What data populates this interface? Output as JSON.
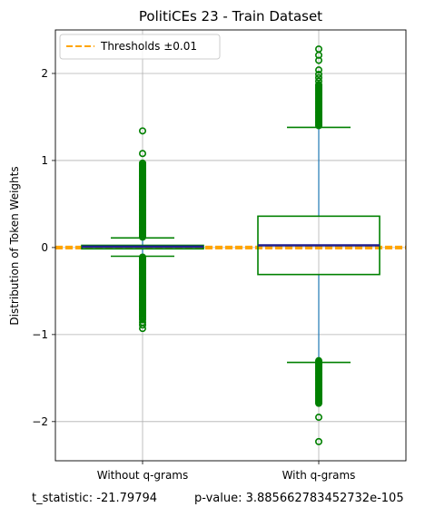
{
  "chart_data": {
    "type": "box",
    "title": "PolitiCEs 23 - Train Dataset",
    "ylabel": "Distribution of Token Weights",
    "xlabel": "",
    "categories": [
      "Without q-grams",
      "With q-grams"
    ],
    "ylim": [
      -2.45,
      2.5
    ],
    "yticks": [
      -2,
      -1,
      0,
      1,
      2
    ],
    "ytick_labels": [
      "−2",
      "−1",
      "0",
      "1",
      "2"
    ],
    "grid": true,
    "legend": {
      "position": "top-left",
      "entries": [
        "Thresholds ±0.01"
      ]
    },
    "thresholds": [
      -0.01,
      0.01
    ],
    "boxes": [
      {
        "name": "Without q-grams",
        "q1": -0.015,
        "median": 0.005,
        "mean": 0.015,
        "q3": 0.025,
        "whisker_low": -0.1,
        "whisker_high": 0.11,
        "outlier_ranges": [
          [
            0.12,
            0.97
          ],
          [
            -0.83,
            -0.11
          ]
        ],
        "outliers": [
          1.34,
          1.08,
          -0.86,
          -0.89,
          -0.93
        ]
      },
      {
        "name": "With q-grams",
        "q1": -0.31,
        "median": 0.02,
        "mean": 0.03,
        "q3": 0.36,
        "whisker_low": -1.32,
        "whisker_high": 1.38,
        "outlier_ranges": [
          [
            1.4,
            1.87
          ],
          [
            -1.79,
            -1.3
          ]
        ],
        "outliers": [
          2.28,
          2.21,
          2.15,
          2.04,
          1.99,
          1.95,
          1.91,
          -1.95,
          -2.23
        ]
      }
    ],
    "colors": {
      "box": "#008000",
      "whisker_line": "#1f77b4",
      "median": "#1f1f8f",
      "threshold": "#ffa500",
      "grid": "#b0b0b0"
    }
  },
  "footer": {
    "t_statistic": "t_statistic: -21.79794",
    "p_value": "p-value: 3.885662783452732e-105"
  }
}
